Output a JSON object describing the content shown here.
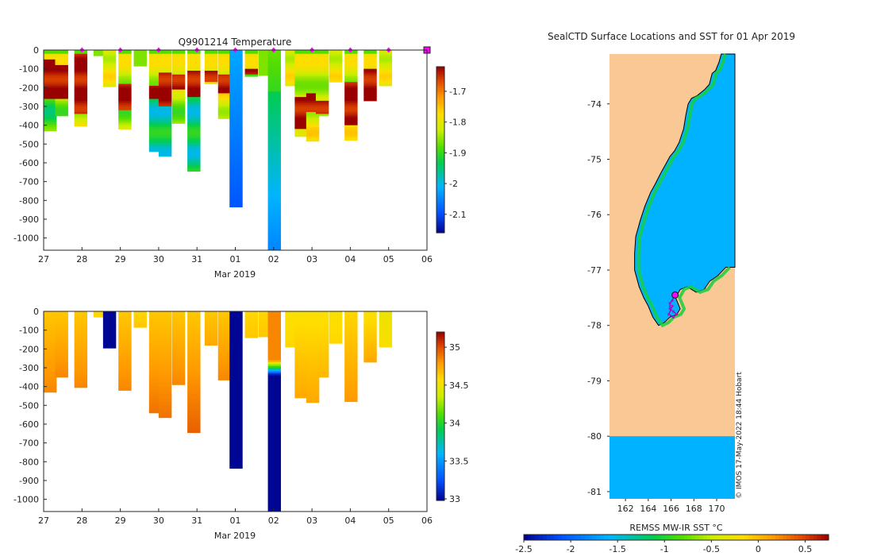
{
  "chart_data": [
    {
      "type": "heatmap",
      "title": "Q9901214  Temperature",
      "xlabel": "Mar 2019",
      "ylabel": "",
      "x_tick_labels": [
        "27",
        "28",
        "29",
        "30",
        "31",
        "01",
        "02",
        "03",
        "04",
        "05",
        "06"
      ],
      "x_range_days": [
        0,
        10
      ],
      "y_ticks": [
        0,
        -100,
        -200,
        -300,
        -400,
        -500,
        -600,
        -700,
        -800,
        -900,
        -1000
      ],
      "ylim": [
        -1065,
        0
      ],
      "colorbar": {
        "range": [
          -2.16,
          -1.62
        ],
        "ticks": [
          -1.7,
          -1.8,
          -1.9,
          -2,
          -2.1
        ]
      },
      "surfacing_markers_day": [
        1.0,
        2.0,
        3.0,
        4.0,
        5.0,
        6.0,
        7.0,
        8.0,
        9.0
      ],
      "profiles": [
        {
          "day": 0.0,
          "max_depth": 430,
          "type": "warm",
          "layer": [
            50,
            260
          ],
          "low_min": -1.9
        },
        {
          "day": 0.3,
          "max_depth": 350,
          "type": "warm",
          "layer": [
            80,
            260
          ],
          "low_min": -1.85
        },
        {
          "day": 0.8,
          "max_depth": 405,
          "type": "warm",
          "layer": [
            0,
            340
          ],
          "low_min": -1.8
        },
        {
          "day": 1.3,
          "max_depth": 30,
          "type": "surface"
        },
        {
          "day": 1.55,
          "max_depth": 195,
          "type": "mid"
        },
        {
          "day": 1.95,
          "max_depth": 420,
          "type": "warm",
          "layer": [
            180,
            320
          ],
          "low_min": -1.85
        },
        {
          "day": 2.35,
          "max_depth": 85,
          "type": "surface"
        },
        {
          "day": 2.75,
          "max_depth": 540,
          "type": "mixed",
          "layer": [
            190,
            260
          ],
          "low_min": -1.95
        },
        {
          "day": 3.0,
          "max_depth": 565,
          "type": "mixed",
          "layer": [
            120,
            300
          ],
          "low_min": -1.95
        },
        {
          "day": 3.35,
          "max_depth": 390,
          "type": "warm",
          "layer": [
            130,
            210
          ],
          "low_min": -1.85
        },
        {
          "day": 3.75,
          "max_depth": 645,
          "type": "mixed",
          "layer": [
            110,
            250
          ],
          "low_min": -1.95
        },
        {
          "day": 4.2,
          "max_depth": 180,
          "type": "warm",
          "layer": [
            110,
            170
          ],
          "low_min": -1.8
        },
        {
          "day": 4.55,
          "max_depth": 365,
          "type": "warm",
          "layer": [
            130,
            230
          ],
          "low_min": -1.8
        },
        {
          "day": 4.85,
          "max_depth": 835,
          "type": "cold"
        },
        {
          "day": 5.25,
          "max_depth": 140,
          "type": "warm",
          "layer": [
            100,
            130
          ],
          "low_min": -1.85
        },
        {
          "day": 5.6,
          "max_depth": 135,
          "type": "surface"
        },
        {
          "day": 5.85,
          "max_depth": 1065,
          "type": "deepcold"
        },
        {
          "day": 6.3,
          "max_depth": 190,
          "type": "mid"
        },
        {
          "day": 6.55,
          "max_depth": 460,
          "type": "warm",
          "layer": [
            250,
            420
          ],
          "low_min": -1.85
        },
        {
          "day": 6.85,
          "max_depth": 485,
          "type": "warm",
          "layer": [
            230,
            330
          ],
          "low_min": -1.8
        },
        {
          "day": 7.1,
          "max_depth": 350,
          "type": "warm",
          "layer": [
            270,
            340
          ],
          "low_min": -1.8
        },
        {
          "day": 7.45,
          "max_depth": 170,
          "type": "mid"
        },
        {
          "day": 7.85,
          "max_depth": 480,
          "type": "warm",
          "layer": [
            170,
            400
          ],
          "low_min": -1.8
        },
        {
          "day": 8.35,
          "max_depth": 270,
          "type": "warm",
          "layer": [
            100,
            270
          ],
          "low_min": -1.9
        },
        {
          "day": 8.75,
          "max_depth": 190,
          "type": "mid"
        }
      ]
    },
    {
      "type": "heatmap",
      "title": "",
      "xlabel": "Mar 2019",
      "ylabel": "",
      "x_tick_labels": [
        "27",
        "28",
        "29",
        "30",
        "31",
        "01",
        "02",
        "03",
        "04",
        "05",
        "06"
      ],
      "x_range_days": [
        0,
        10
      ],
      "y_ticks": [
        0,
        -100,
        -200,
        -300,
        -400,
        -500,
        -600,
        -700,
        -800,
        -900,
        -1000
      ],
      "ylim": [
        -1065,
        0
      ],
      "colorbar": {
        "range": [
          32.98,
          35.2
        ],
        "ticks": [
          35,
          34.5,
          34,
          33.5,
          33
        ]
      },
      "profiles": [
        {
          "day": 0.0,
          "max_depth": 430,
          "sal_top": 34.65,
          "sal_bot": 34.85
        },
        {
          "day": 0.3,
          "max_depth": 350,
          "sal_top": 34.65,
          "sal_bot": 34.85
        },
        {
          "day": 0.8,
          "max_depth": 405,
          "sal_top": 34.65,
          "sal_bot": 34.85
        },
        {
          "day": 1.3,
          "max_depth": 30,
          "sal_top": 34.6,
          "sal_bot": 34.6
        },
        {
          "day": 1.55,
          "max_depth": 195,
          "sal_top": 33.0,
          "sal_bot": 33.0
        },
        {
          "day": 1.95,
          "max_depth": 420,
          "sal_top": 34.65,
          "sal_bot": 34.85
        },
        {
          "day": 2.35,
          "max_depth": 85,
          "sal_top": 34.6,
          "sal_bot": 34.65
        },
        {
          "day": 2.75,
          "max_depth": 540,
          "sal_top": 34.65,
          "sal_bot": 34.9
        },
        {
          "day": 3.0,
          "max_depth": 565,
          "sal_top": 34.65,
          "sal_bot": 34.9
        },
        {
          "day": 3.35,
          "max_depth": 390,
          "sal_top": 34.65,
          "sal_bot": 34.85
        },
        {
          "day": 3.75,
          "max_depth": 645,
          "sal_top": 34.65,
          "sal_bot": 34.95
        },
        {
          "day": 4.2,
          "max_depth": 180,
          "sal_top": 34.65,
          "sal_bot": 34.75
        },
        {
          "day": 4.55,
          "max_depth": 365,
          "sal_top": 34.65,
          "sal_bot": 34.85
        },
        {
          "day": 4.85,
          "max_depth": 835,
          "sal_top": 33.0,
          "sal_bot": 33.0
        },
        {
          "day": 5.25,
          "max_depth": 140,
          "sal_top": 34.6,
          "sal_bot": 34.65
        },
        {
          "day": 5.6,
          "max_depth": 135,
          "sal_top": 34.6,
          "sal_bot": 34.65
        },
        {
          "day": 5.85,
          "max_depth": 1065,
          "sal_top": 34.85,
          "sal_bot": 33.0,
          "front": [
            260,
            340
          ]
        },
        {
          "day": 6.3,
          "max_depth": 190,
          "sal_top": 34.55,
          "sal_bot": 34.6
        },
        {
          "day": 6.55,
          "max_depth": 460,
          "sal_top": 34.55,
          "sal_bot": 34.75
        },
        {
          "day": 6.85,
          "max_depth": 485,
          "sal_top": 34.55,
          "sal_bot": 34.75
        },
        {
          "day": 7.1,
          "max_depth": 350,
          "sal_top": 34.55,
          "sal_bot": 34.7
        },
        {
          "day": 7.45,
          "max_depth": 170,
          "sal_top": 34.55,
          "sal_bot": 34.6
        },
        {
          "day": 7.85,
          "max_depth": 480,
          "sal_top": 34.6,
          "sal_bot": 34.8
        },
        {
          "day": 8.35,
          "max_depth": 270,
          "sal_top": 34.55,
          "sal_bot": 34.75
        },
        {
          "day": 8.75,
          "max_depth": 190,
          "sal_top": 34.5,
          "sal_bot": 34.55
        }
      ]
    },
    {
      "type": "heatmap",
      "title": "SealCTD Surface Locations and SST for 01 Apr 2019",
      "xlabel": "",
      "ylabel": "",
      "x_tick_values": [
        162,
        164,
        166,
        168,
        170
      ],
      "x_range": [
        160.6,
        171.6
      ],
      "y_tick_values": [
        -74,
        -75,
        -76,
        -77,
        -78,
        -79,
        -80,
        -81
      ],
      "y_range": [
        -81.13,
        -73.1
      ],
      "colorbar_label": "REMSS MW-IR SST °C",
      "colorbar": {
        "range": [
          -2.5,
          0.75
        ],
        "ticks": [
          -2.5,
          -2,
          -1.5,
          -1,
          -0.5,
          0,
          0.5
        ]
      },
      "credit": "© IMOS 17-May-2022 18:44 Hobart",
      "ocean_sst": -1.6,
      "coastline_lonlat": [
        [
          170.4,
          -73.1
        ],
        [
          170.2,
          -73.25
        ],
        [
          169.9,
          -73.4
        ],
        [
          169.6,
          -73.45
        ],
        [
          169.35,
          -73.65
        ],
        [
          168.9,
          -73.75
        ],
        [
          168.3,
          -73.85
        ],
        [
          167.8,
          -73.9
        ],
        [
          167.5,
          -74.0
        ],
        [
          167.3,
          -74.2
        ],
        [
          167.1,
          -74.45
        ],
        [
          166.7,
          -74.7
        ],
        [
          166.3,
          -74.85
        ],
        [
          165.9,
          -74.95
        ],
        [
          165.5,
          -75.1
        ],
        [
          165.1,
          -75.25
        ],
        [
          164.6,
          -75.45
        ],
        [
          164.2,
          -75.6
        ],
        [
          163.7,
          -75.85
        ],
        [
          163.3,
          -76.1
        ],
        [
          162.9,
          -76.4
        ],
        [
          162.8,
          -76.7
        ],
        [
          162.8,
          -77.0
        ],
        [
          163.2,
          -77.3
        ],
        [
          163.6,
          -77.5
        ],
        [
          164.0,
          -77.65
        ],
        [
          164.4,
          -77.85
        ],
        [
          164.9,
          -78.0
        ],
        [
          165.4,
          -77.95
        ],
        [
          165.9,
          -77.85
        ],
        [
          166.5,
          -77.8
        ],
        [
          166.8,
          -77.7
        ],
        [
          166.4,
          -77.5
        ],
        [
          166.8,
          -77.35
        ],
        [
          167.4,
          -77.3
        ],
        [
          168.2,
          -77.4
        ],
        [
          168.9,
          -77.35
        ],
        [
          169.4,
          -77.2
        ],
        [
          170.1,
          -77.1
        ],
        [
          170.8,
          -76.95
        ]
      ],
      "ice_shelf_lat": -80.0,
      "seal_track_lonlat": [
        [
          166.3,
          -77.45
        ],
        [
          166.1,
          -77.55
        ],
        [
          165.9,
          -77.6
        ],
        [
          165.9,
          -77.7
        ],
        [
          166.2,
          -77.75
        ],
        [
          166.5,
          -77.8
        ],
        [
          166.2,
          -77.85
        ],
        [
          165.8,
          -77.8
        ],
        [
          166.1,
          -77.65
        ]
      ],
      "last_position_lonlat": [
        166.35,
        -77.45
      ]
    }
  ]
}
